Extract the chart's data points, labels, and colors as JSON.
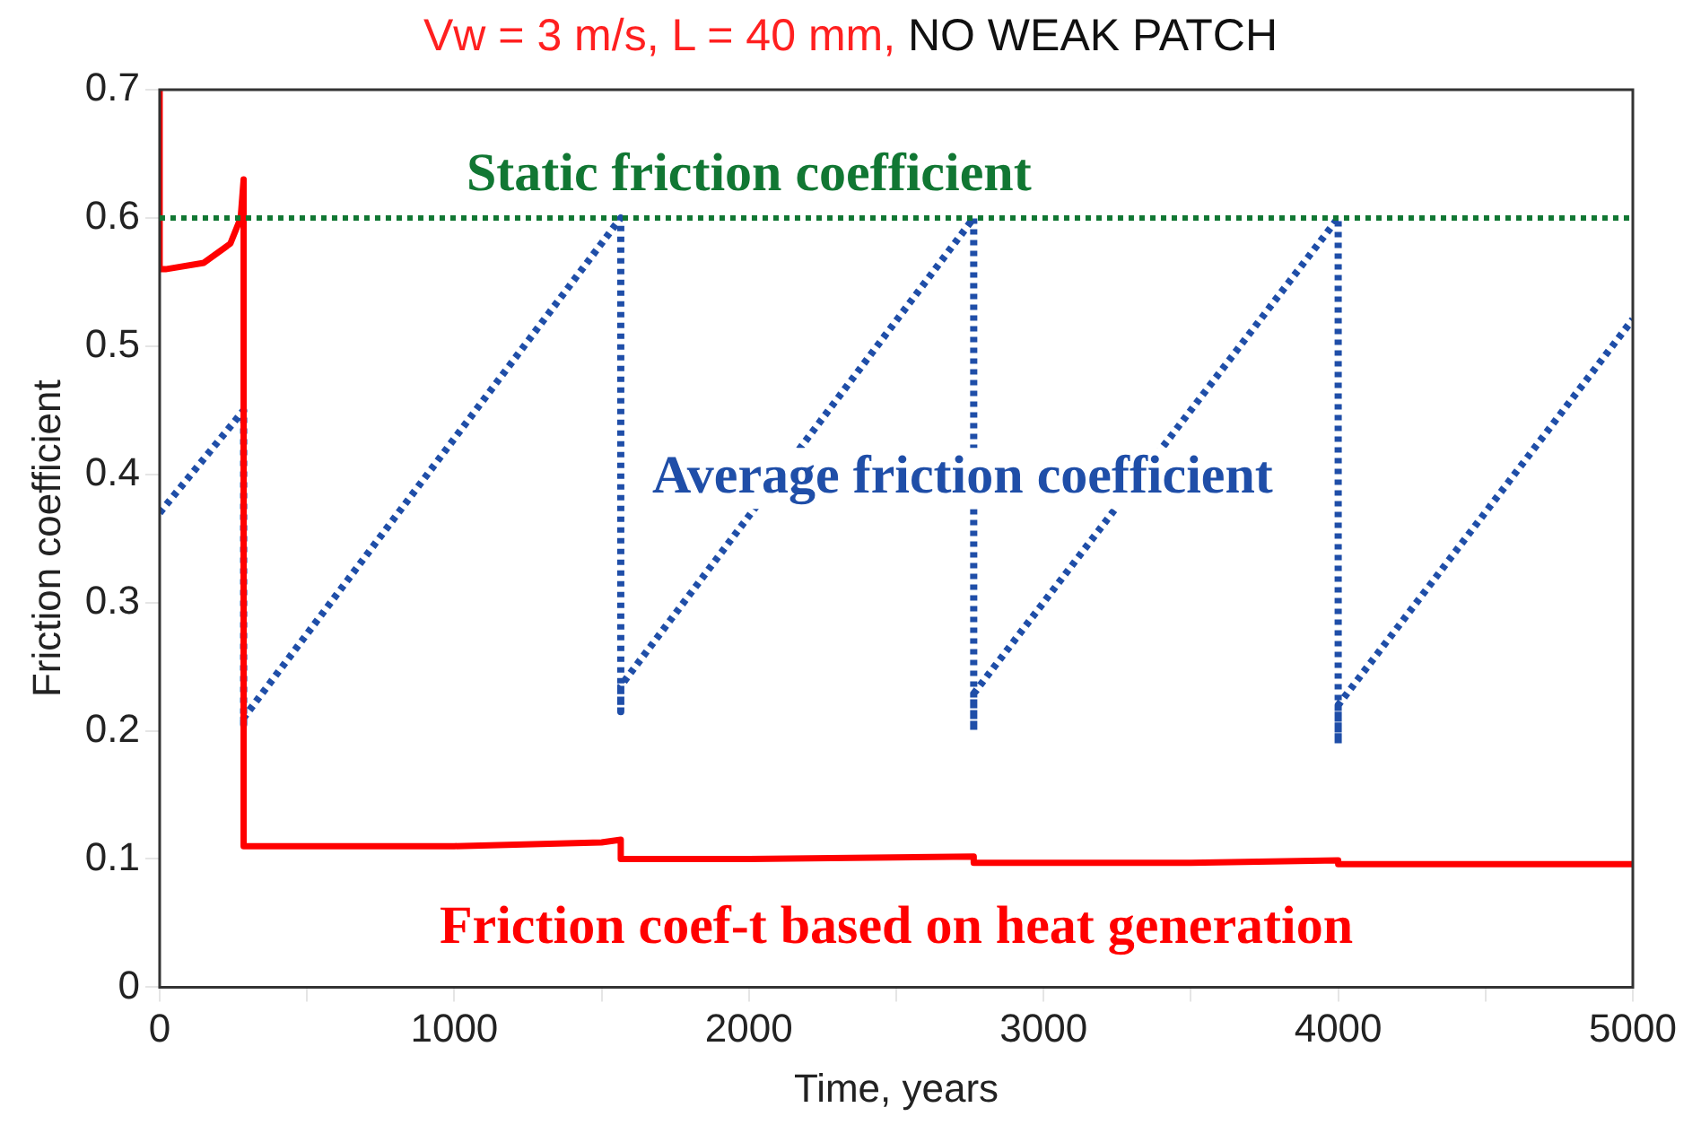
{
  "chart_data": {
    "type": "line",
    "title": "Vw = 3 m/s, L = 40 mm, NO WEAK PATCH",
    "xlabel": "Time, years",
    "ylabel": "Friction coefficient",
    "xlim": [
      0,
      5000
    ],
    "xticks": [
      0,
      {
        "value": 500,
        "label": null
      },
      1000,
      {
        "value": 1500,
        "label": null
      },
      2000,
      {
        "value": 2500,
        "label": null
      },
      3000,
      {
        "value": 3500,
        "label": null
      },
      4000,
      {
        "value": 4500,
        "label": null
      },
      5000
    ],
    "ylim": [
      0,
      0.7
    ],
    "yticks": [
      0,
      0.1,
      0.2,
      0.3,
      0.4,
      0.5,
      0.6,
      0.7
    ],
    "grid": false,
    "legend": false,
    "marker": "none",
    "ref_lines": [
      {
        "axis": "y",
        "value": 0.6,
        "label": "Static friction coefficient",
        "color": "#117733",
        "line_style": "dotted"
      }
    ],
    "series": [
      {
        "name": "Friction coef-t based on heat generation",
        "color": "#ff0000",
        "line_style": "solid",
        "x": [
          0,
          0,
          20,
          150,
          240,
          275,
          285,
          285,
          300,
          1000,
          1500,
          1565,
          1565,
          2000,
          2763,
          2763,
          3500,
          4000,
          4000,
          5000
        ],
        "values": [
          0.7,
          0.56,
          0.56,
          0.565,
          0.58,
          0.6,
          0.63,
          0.11,
          0.11,
          0.11,
          0.113,
          0.115,
          0.1,
          0.1,
          0.102,
          0.097,
          0.097,
          0.099,
          0.096,
          0.096
        ]
      },
      {
        "name": "Average friction coefficient",
        "color": "#1f4ea8",
        "line_style": "dotted",
        "x": [
          0,
          285,
          285,
          285,
          1565,
          1565,
          1565,
          1565,
          2763,
          2763,
          2763,
          2763,
          4000,
          4000,
          4000,
          4000,
          5000
        ],
        "values": [
          0.37,
          0.45,
          0.205,
          0.21,
          0.6,
          0.215,
          0.235,
          0.235,
          0.6,
          0.2,
          0.229,
          0.229,
          0.6,
          0.19,
          0.22,
          0.22,
          0.521
        ]
      }
    ]
  }
}
